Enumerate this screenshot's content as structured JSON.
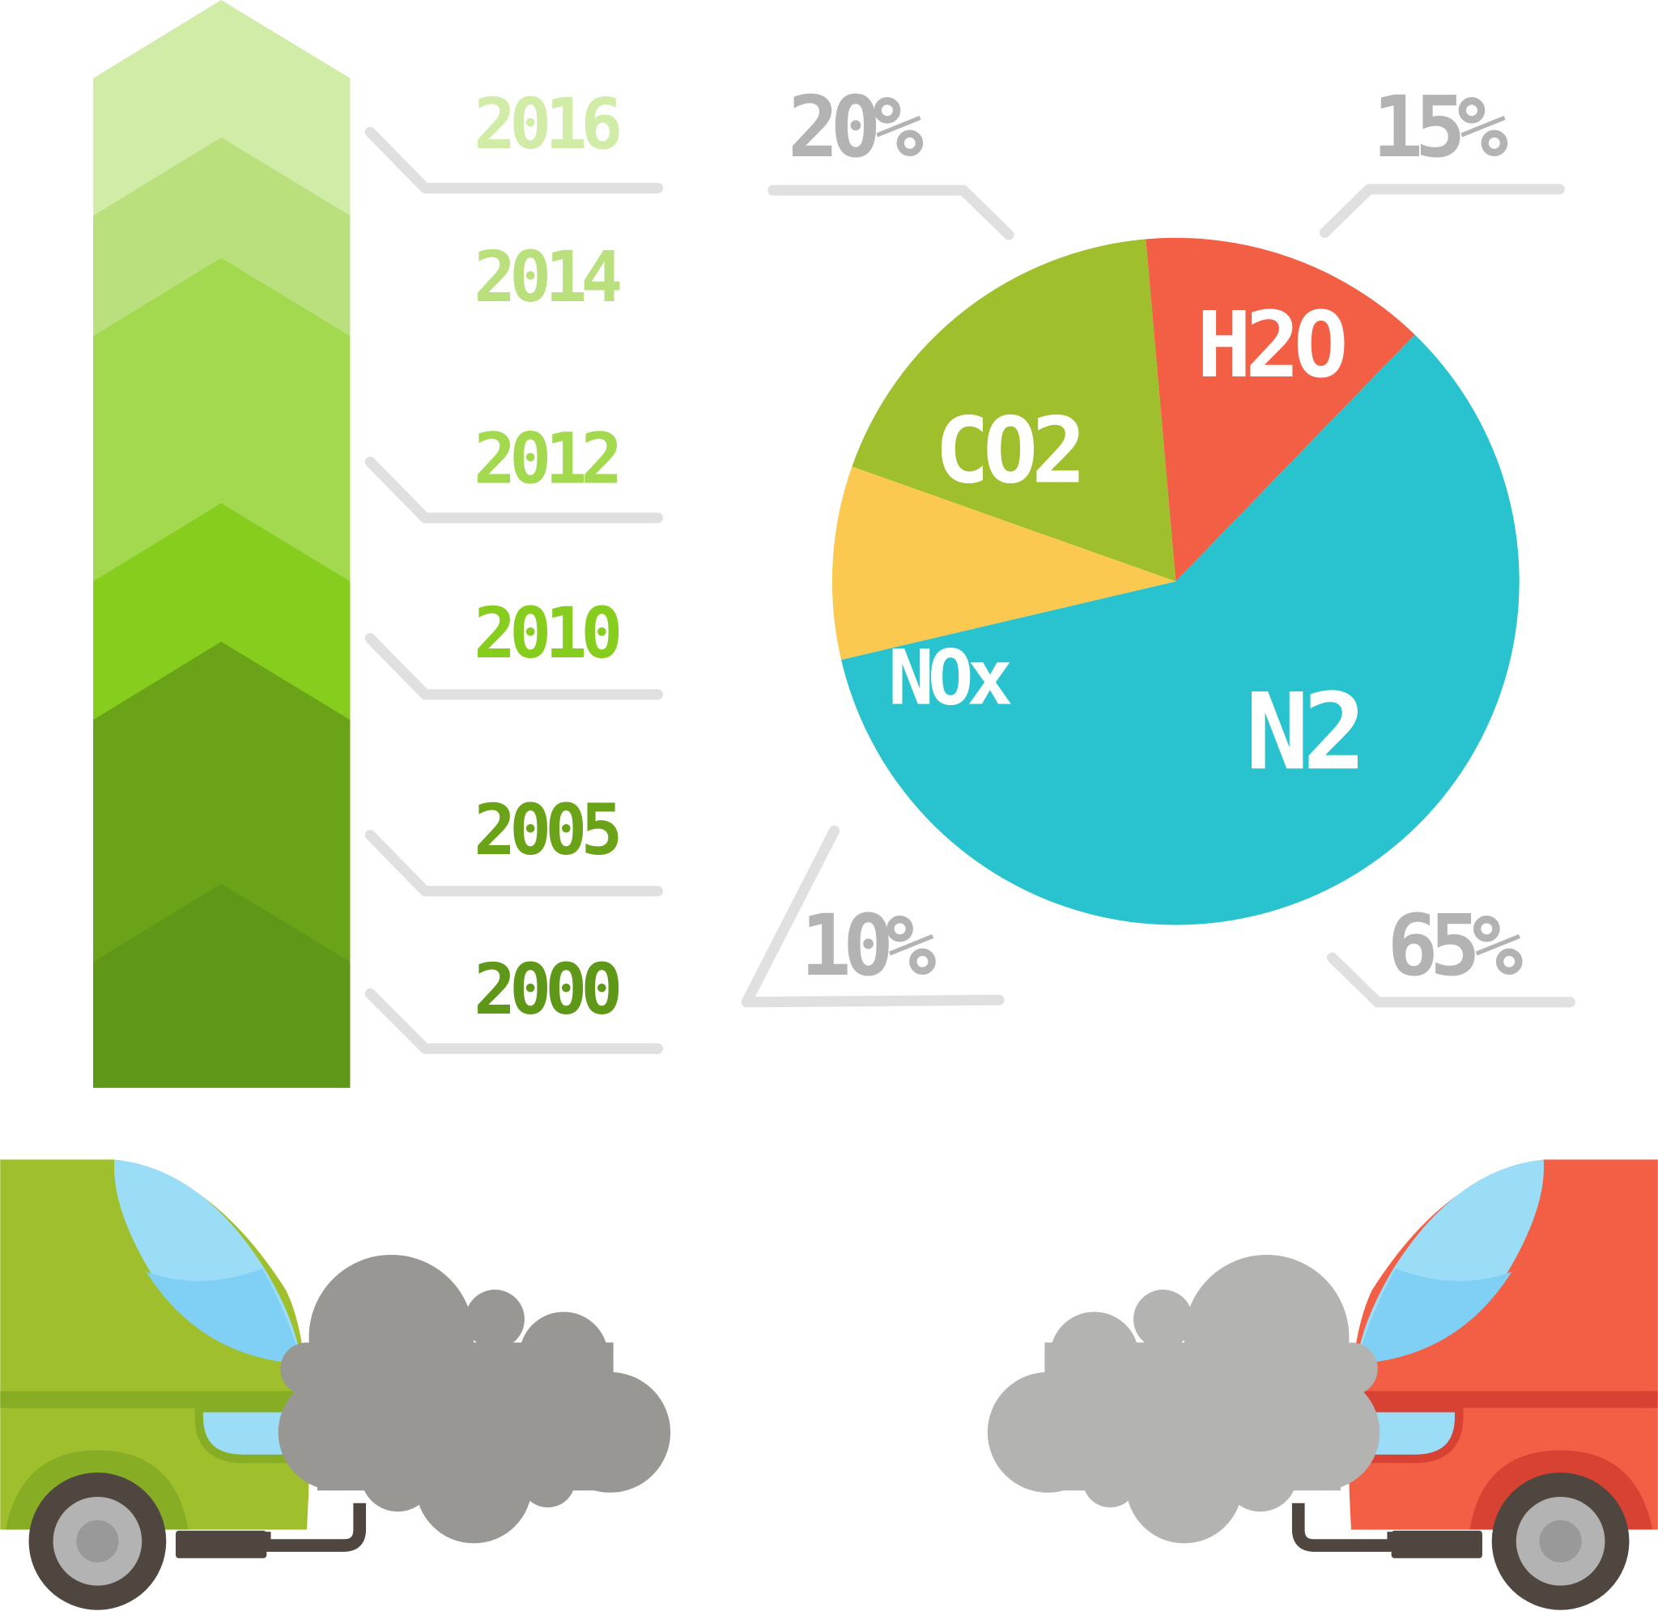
{
  "timeline": {
    "years": [
      {
        "label": "2016",
        "color": "#d0eca6"
      },
      {
        "label": "2014",
        "color": "#b9e07c"
      },
      {
        "label": "2012",
        "color": "#a2d94e"
      },
      {
        "label": "2010",
        "color": "#86cd1e"
      },
      {
        "label": "2005",
        "color": "#6aa318"
      },
      {
        "label": "2000",
        "color": "#5f9819"
      }
    ]
  },
  "chart_data": {
    "type": "pie",
    "slices": [
      {
        "label": "H2O",
        "value": 15,
        "value_label": "15%",
        "color": "#f25f44"
      },
      {
        "label": "N2",
        "value": 65,
        "value_label": "65%",
        "color": "#29c3cf"
      },
      {
        "label": "NOx",
        "value": 10,
        "value_label": "10%",
        "color": "#fbc950"
      },
      {
        "label": "CO2",
        "value": 20,
        "value_label": "20%",
        "color": "#9fbf2d"
      }
    ]
  },
  "cars": {
    "left": {
      "body_color": "#9fbf2d",
      "smoke_color": "#999793"
    },
    "right": {
      "body_color": "#f25f44",
      "smoke_color": "#b3b3b2"
    }
  }
}
